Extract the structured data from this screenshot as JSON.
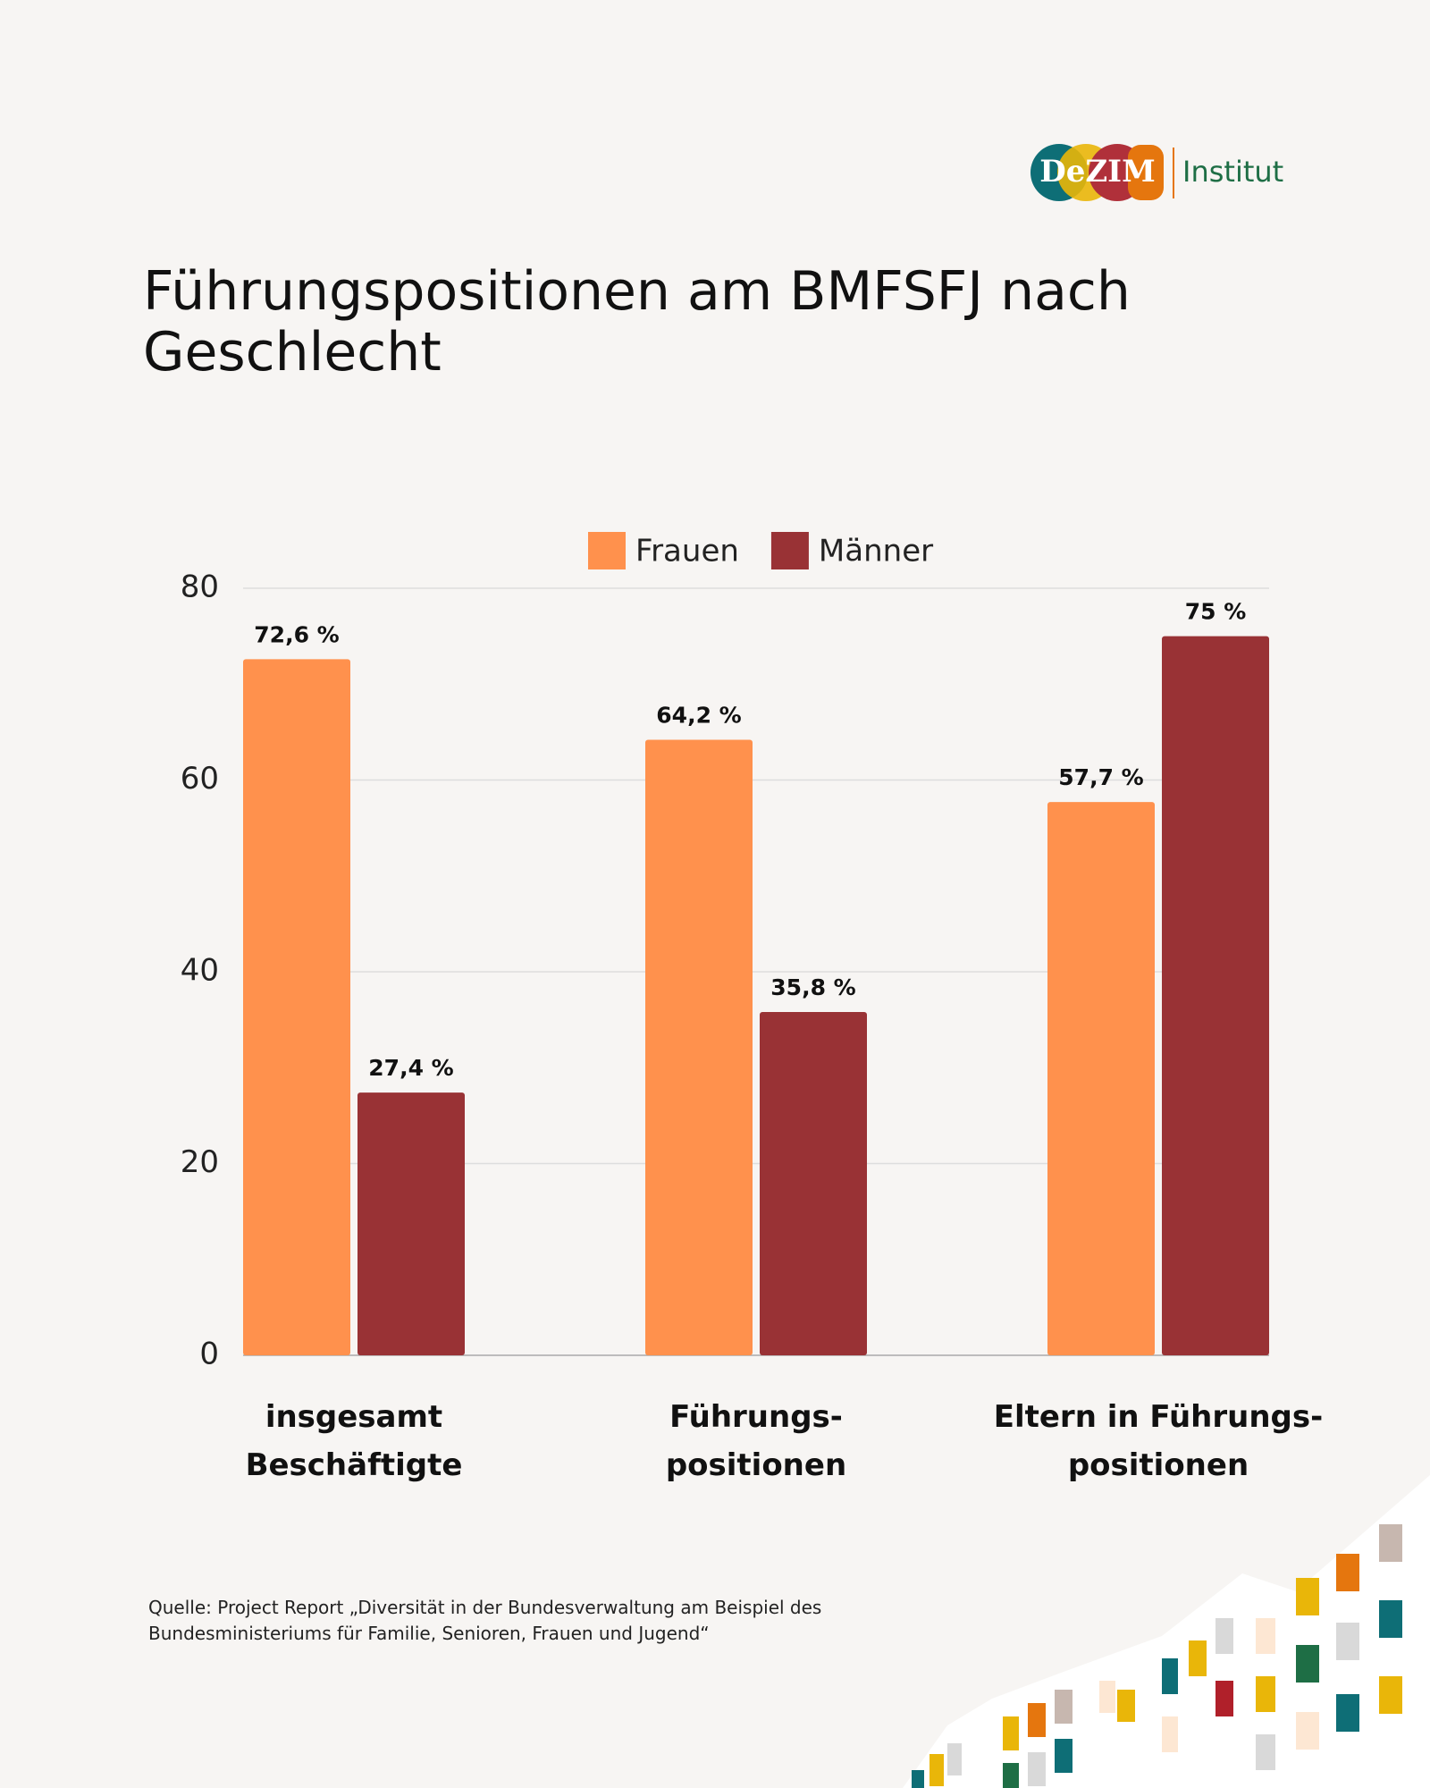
{
  "logo": {
    "name": "DeZIM",
    "suffix": "Institut"
  },
  "chart_data": {
    "type": "bar",
    "title": "Führungspositionen am BMFSFJ nach Geschlecht",
    "categories": [
      "insgesamt\nBeschäftigte",
      "Führungs-\npositionen",
      "Eltern in Führungs-\npositionen"
    ],
    "series": [
      {
        "name": "Frauen",
        "color": "#FF914D",
        "values": [
          72.6,
          64.2,
          57.7
        ],
        "value_labels": [
          "72,6 %",
          "64,2 %",
          "57,7 %"
        ]
      },
      {
        "name": "Männer",
        "color": "#993235",
        "values": [
          27.4,
          35.8,
          75
        ],
        "value_labels": [
          "27,4 %",
          "35,8 %",
          "75 %"
        ]
      }
    ],
    "ylim": [
      0,
      80
    ],
    "yticks": [
      0,
      20,
      40,
      60,
      80
    ],
    "grid": true,
    "legend": "top"
  },
  "source": "Quelle: Project Report „Diversität in der Bundesverwaltung am Beispiel des Bundesministeriums für Familie, Senioren, Frauen und Jugend“"
}
